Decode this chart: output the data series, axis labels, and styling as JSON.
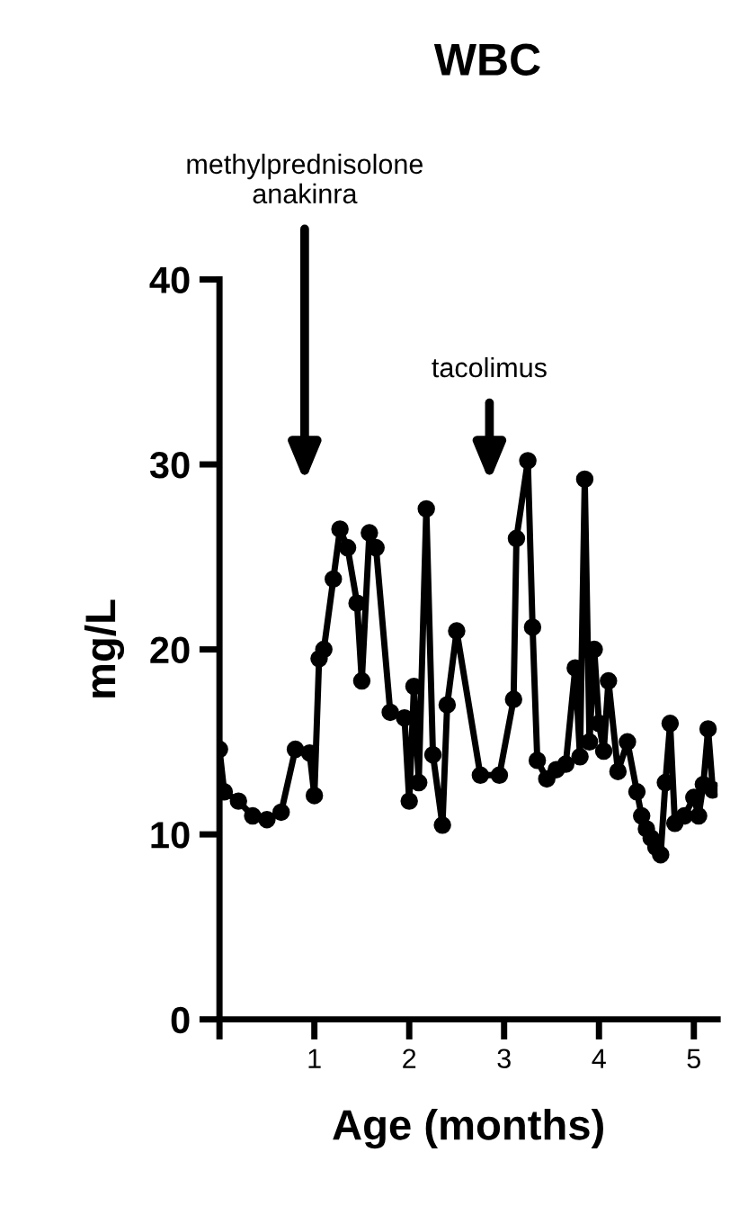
{
  "chart_data": {
    "type": "line",
    "title": "WBC",
    "xlabel": "Age (months)",
    "ylabel": "mg/L",
    "x": [
      0,
      0.05,
      0.2,
      0.35,
      0.5,
      0.65,
      0.8,
      0.95,
      1.0,
      1.05,
      1.1,
      1.2,
      1.27,
      1.35,
      1.45,
      1.5,
      1.58,
      1.65,
      1.8,
      1.95,
      2.0,
      2.05,
      2.1,
      2.18,
      2.25,
      2.35,
      2.4,
      2.5,
      2.75,
      2.95,
      3.1,
      3.13,
      3.25,
      3.3,
      3.35,
      3.45,
      3.55,
      3.65,
      3.75,
      3.8,
      3.85,
      3.9,
      3.95,
      4.0,
      4.05,
      4.1,
      4.2,
      4.3,
      4.4,
      4.45,
      4.5,
      4.55,
      4.6,
      4.65,
      4.7,
      4.75,
      4.8,
      4.9,
      5.0,
      5.05,
      5.1,
      5.15,
      5.2
    ],
    "series": [
      {
        "color": "#000000",
        "values": [
          14.6,
          12.3,
          11.8,
          11.0,
          10.8,
          11.2,
          14.6,
          14.4,
          12.1,
          19.5,
          20.0,
          23.8,
          26.5,
          25.5,
          22.5,
          18.3,
          26.3,
          25.5,
          16.6,
          16.3,
          11.8,
          18.0,
          12.8,
          27.6,
          14.3,
          10.5,
          17.0,
          21.0,
          13.2,
          13.2,
          17.3,
          26.0,
          30.2,
          21.2,
          14.0,
          13.0,
          13.5,
          13.8,
          19.0,
          14.2,
          29.2,
          15.0,
          20.0,
          16.0,
          14.5,
          18.3,
          13.4,
          15.0,
          12.3,
          11.0,
          10.3,
          9.8,
          9.3,
          8.9,
          12.8,
          16.0,
          10.6,
          11.0,
          12.0,
          11.0,
          12.7,
          15.7,
          12.4
        ]
      }
    ],
    "marker": "circle",
    "line_style": "solid",
    "grid": false,
    "legend": false,
    "xlim": [
      0,
      5.25
    ],
    "xticks": [
      {
        "value": 0,
        "label": null
      },
      1,
      2,
      3,
      4,
      5
    ],
    "ylim": [
      0,
      40
    ],
    "yticks": [
      0,
      10,
      20,
      30,
      40
    ],
    "annotations": [
      "methylprednisolone\nanakinra",
      "tacolimus"
    ]
  }
}
